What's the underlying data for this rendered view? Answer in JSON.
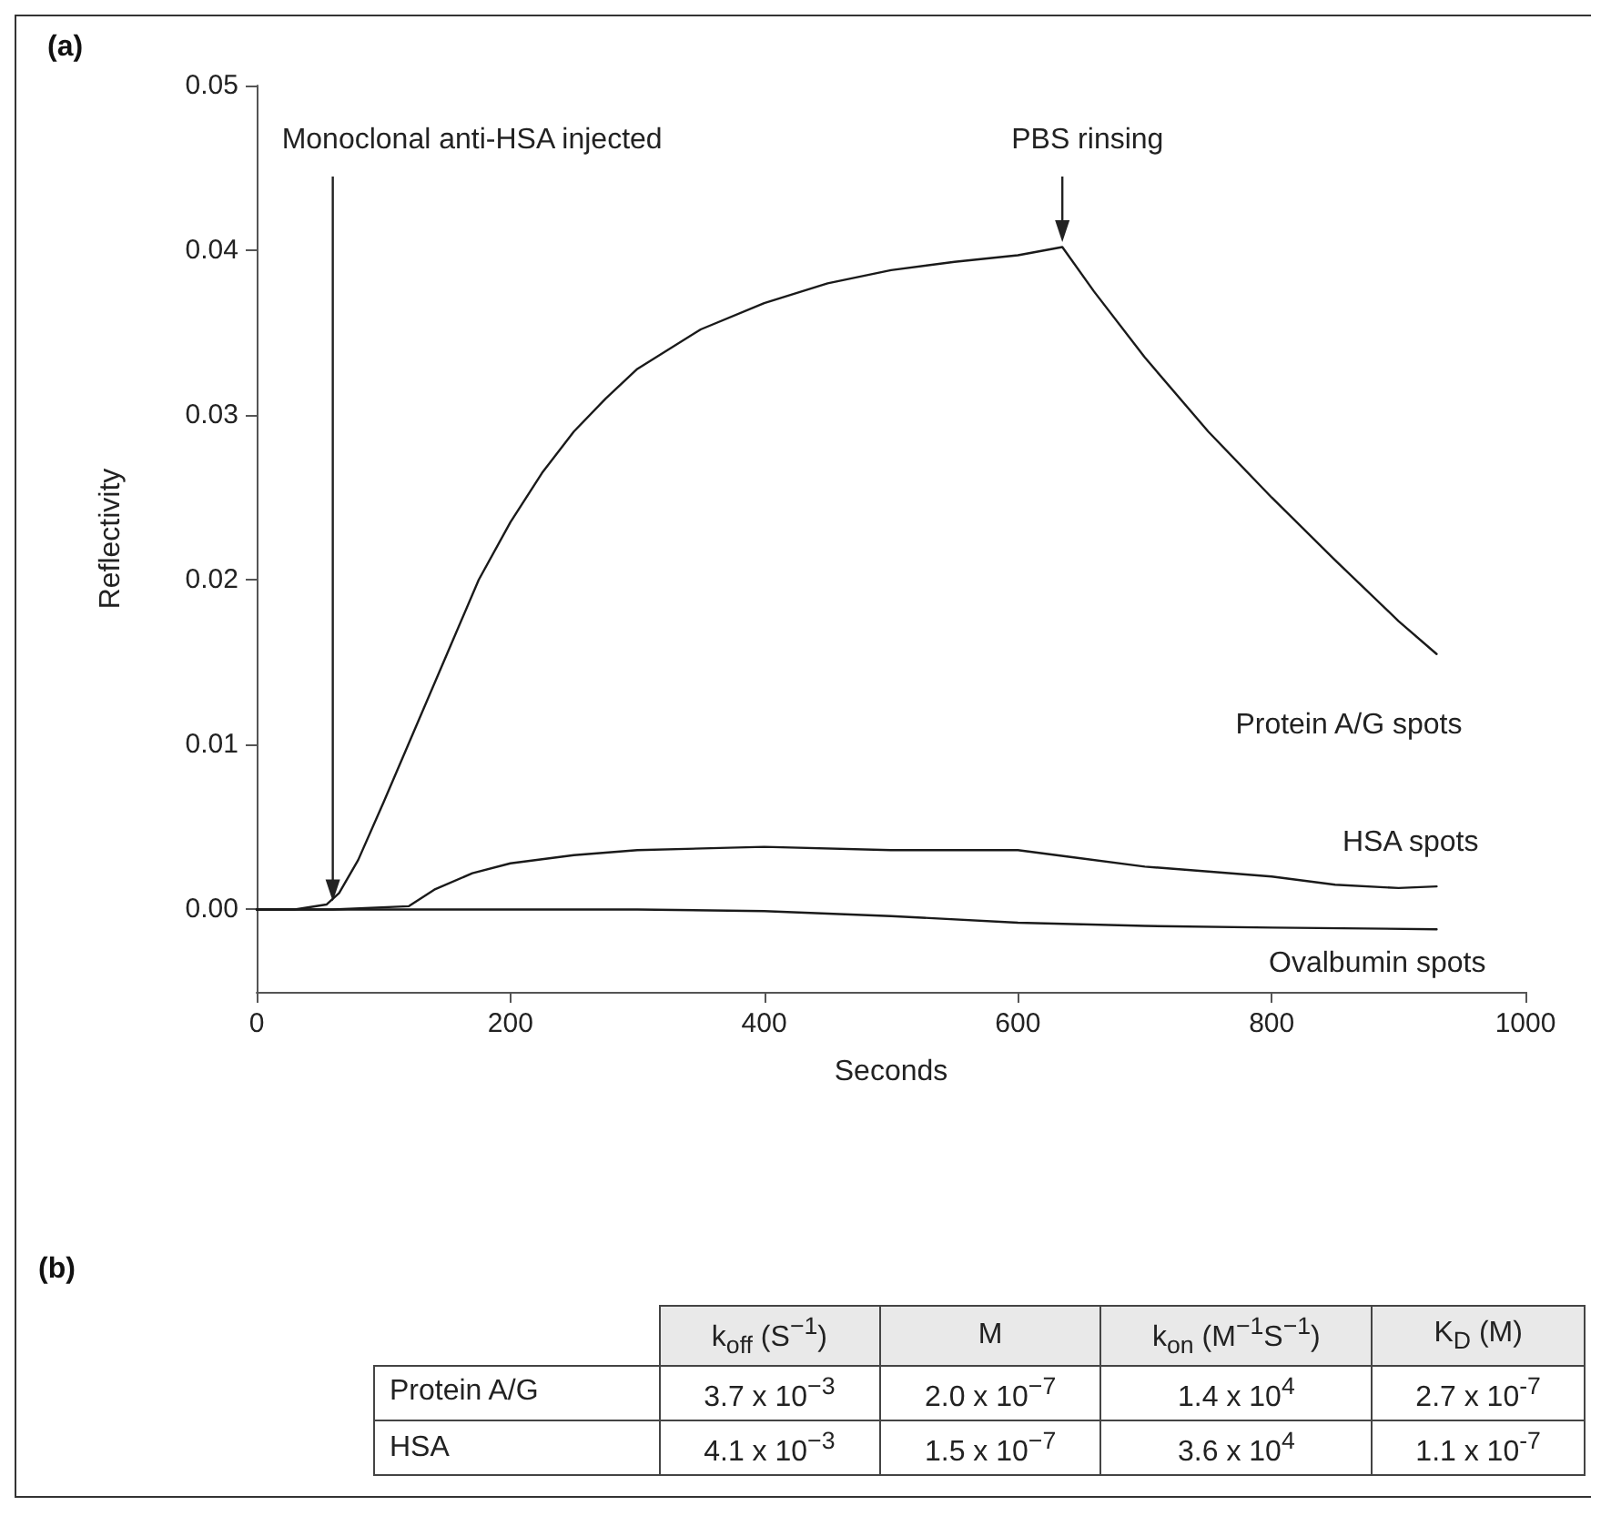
{
  "chart_data": [
    {
      "type": "line",
      "title": "(a)",
      "xlabel": "Seconds",
      "ylabel": "Reflectivity",
      "xlim": [
        0,
        1000
      ],
      "xticks": [
        0,
        200,
        400,
        600,
        800,
        1000
      ],
      "ylim": [
        -0.005,
        0.05
      ],
      "yticks": [
        {
          "value": 0,
          "label": "0.00"
        },
        0.01,
        0.02,
        0.03,
        0.04,
        0.05
      ],
      "grid": false,
      "legend": false,
      "marker": "none",
      "line_style": "solid",
      "annotations": [
        {
          "text": "Monoclonal anti-HSA injected",
          "x": 60,
          "y": 0.0005
        },
        {
          "text": "PBS rinsing",
          "x": 635,
          "y": 0.0405
        }
      ],
      "series": [
        {
          "name": "Protein A/G spots",
          "color": "#1a1a1a",
          "x": [
            0,
            30,
            55,
            65,
            80,
            100,
            125,
            150,
            175,
            200,
            225,
            250,
            275,
            300,
            350,
            400,
            450,
            500,
            550,
            600,
            635,
            660,
            700,
            750,
            800,
            850,
            900,
            930
          ],
          "values": [
            0,
            0,
            0.0003,
            0.001,
            0.003,
            0.0065,
            0.011,
            0.0155,
            0.02,
            0.0235,
            0.0265,
            0.029,
            0.031,
            0.0328,
            0.0352,
            0.0368,
            0.038,
            0.0388,
            0.0393,
            0.0397,
            0.0402,
            0.0375,
            0.0335,
            0.029,
            0.025,
            0.0212,
            0.0175,
            0.0155
          ]
        },
        {
          "name": "HSA spots",
          "color": "#1a1a1a",
          "x": [
            0,
            60,
            120,
            140,
            170,
            200,
            250,
            300,
            400,
            500,
            600,
            640,
            700,
            750,
            800,
            850,
            900,
            930
          ],
          "values": [
            0,
            0,
            0.0002,
            0.0012,
            0.0022,
            0.0028,
            0.0033,
            0.0036,
            0.0038,
            0.0036,
            0.0036,
            0.0032,
            0.0026,
            0.0023,
            0.002,
            0.0015,
            0.0013,
            0.0014
          ]
        },
        {
          "name": "Ovalbumin spots",
          "color": "#1a1a1a",
          "x": [
            0,
            100,
            200,
            300,
            400,
            500,
            600,
            700,
            800,
            930
          ],
          "values": [
            0,
            0,
            0,
            0,
            -0.0001,
            -0.0004,
            -0.0008,
            -0.001,
            -0.0011,
            -0.0012
          ]
        }
      ]
    },
    {
      "type": "other",
      "title": "(b)",
      "categories": [
        "k$_{off}$ (S$^{−1}$)",
        "M",
        "k$_{on}$ (M$^{−1}$S$^{−1}$)",
        "K$_{D}$ (M)"
      ],
      "y_categories": [
        "Protein A/G",
        "HSA"
      ],
      "cell_labels": [
        [
          "3.7 x 10$^{−3}$",
          "2.0 x 10$^{−7}$",
          "1.4 x 10$^{4}$",
          "2.7 x 10$^{-7}$"
        ],
        [
          "4.1 x 10$^{−3}$",
          "1.5 x 10$^{−7}$",
          "3.6 x 10$^{4}$",
          "1.1 x 10$^{-7}$"
        ]
      ]
    }
  ]
}
